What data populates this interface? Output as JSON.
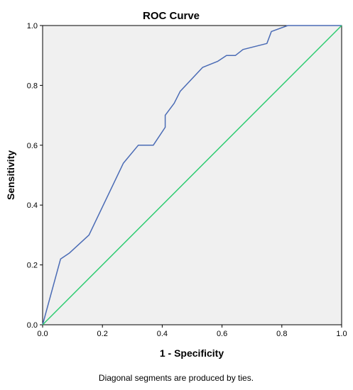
{
  "chart_data": {
    "type": "line",
    "title": "ROC Curve",
    "xlabel": "1 - Specificity",
    "ylabel": "Sensitivity",
    "xlim": [
      0.0,
      1.0
    ],
    "ylim": [
      0.0,
      1.0
    ],
    "x_ticks": [
      "0.0",
      "0.2",
      "0.4",
      "0.6",
      "0.8",
      "1.0"
    ],
    "y_ticks": [
      "0.0",
      "0.2",
      "0.4",
      "0.6",
      "0.8",
      "1.0"
    ],
    "grid": false,
    "plot_background": "#f0f0f0",
    "footnote": "Diagonal segments are produced by ties.",
    "series": [
      {
        "color": "#4a6bb5",
        "points": [
          [
            0.0,
            0.0
          ],
          [
            0.06,
            0.22
          ],
          [
            0.09,
            0.24
          ],
          [
            0.155,
            0.3
          ],
          [
            0.27,
            0.54
          ],
          [
            0.32,
            0.6
          ],
          [
            0.37,
            0.6
          ],
          [
            0.41,
            0.66
          ],
          [
            0.41,
            0.7
          ],
          [
            0.44,
            0.74
          ],
          [
            0.46,
            0.78
          ],
          [
            0.535,
            0.86
          ],
          [
            0.585,
            0.88
          ],
          [
            0.615,
            0.9
          ],
          [
            0.645,
            0.9
          ],
          [
            0.67,
            0.92
          ],
          [
            0.75,
            0.94
          ],
          [
            0.765,
            0.98
          ],
          [
            0.82,
            1.0
          ],
          [
            1.0,
            1.0
          ]
        ]
      },
      {
        "color": "#2ecc71",
        "points": [
          [
            0.0,
            0.0
          ],
          [
            1.0,
            1.0
          ]
        ]
      }
    ]
  }
}
